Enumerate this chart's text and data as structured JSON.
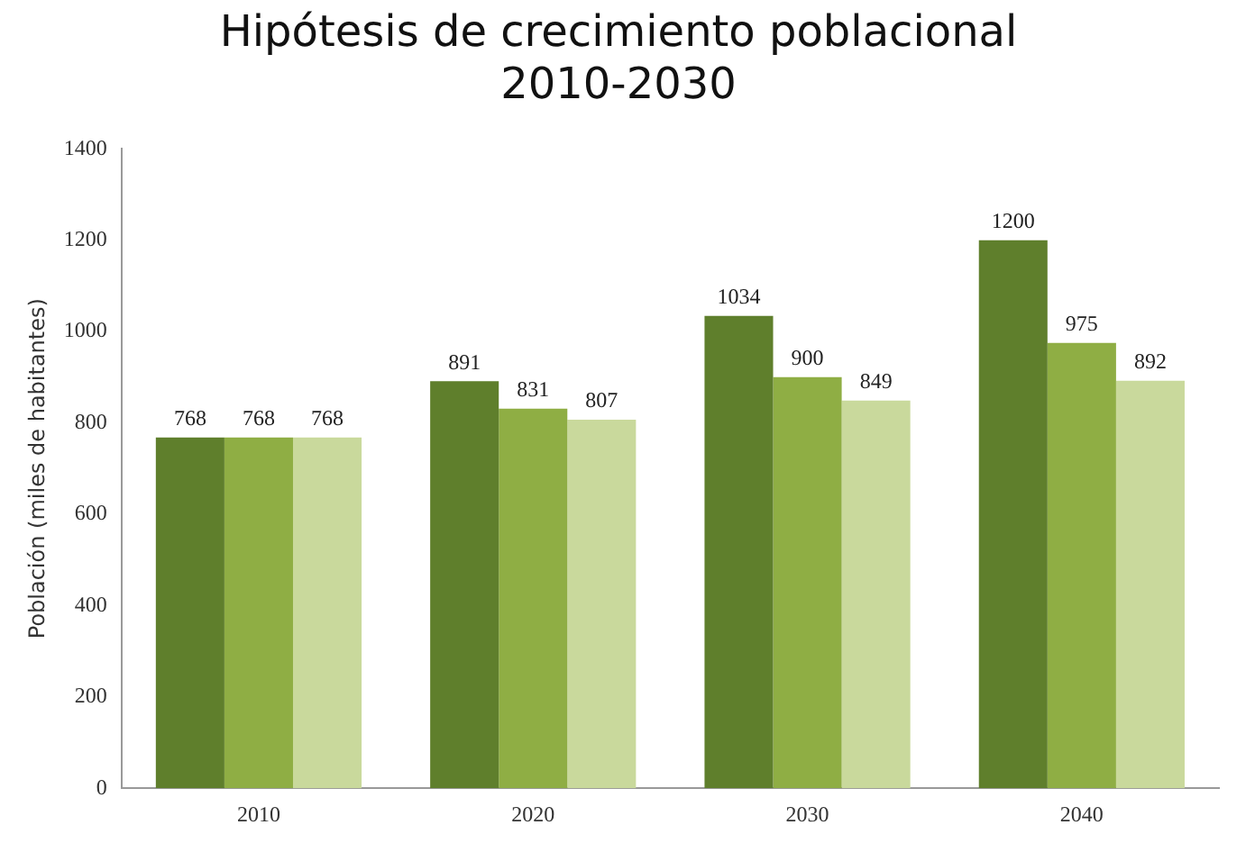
{
  "chart_data": {
    "type": "bar",
    "title": "Hipótesis de crecimiento poblacional\n2010-2030",
    "ylabel": "Población (miles de habitantes)",
    "categories": [
      "2010",
      "2020",
      "2030",
      "2040"
    ],
    "series": [
      {
        "color": "#5f7f2c",
        "values": [
          768,
          891,
          1034,
          1200
        ]
      },
      {
        "color": "#8fae44",
        "values": [
          768,
          831,
          900,
          975
        ]
      },
      {
        "color": "#c9d99c",
        "values": [
          768,
          807,
          849,
          892
        ]
      }
    ],
    "ylim": [
      0,
      1400
    ],
    "yticks": [
      0,
      200,
      400,
      600,
      800,
      1000,
      1200,
      1400
    ],
    "grid": false,
    "legend": false,
    "data_labels": true
  }
}
